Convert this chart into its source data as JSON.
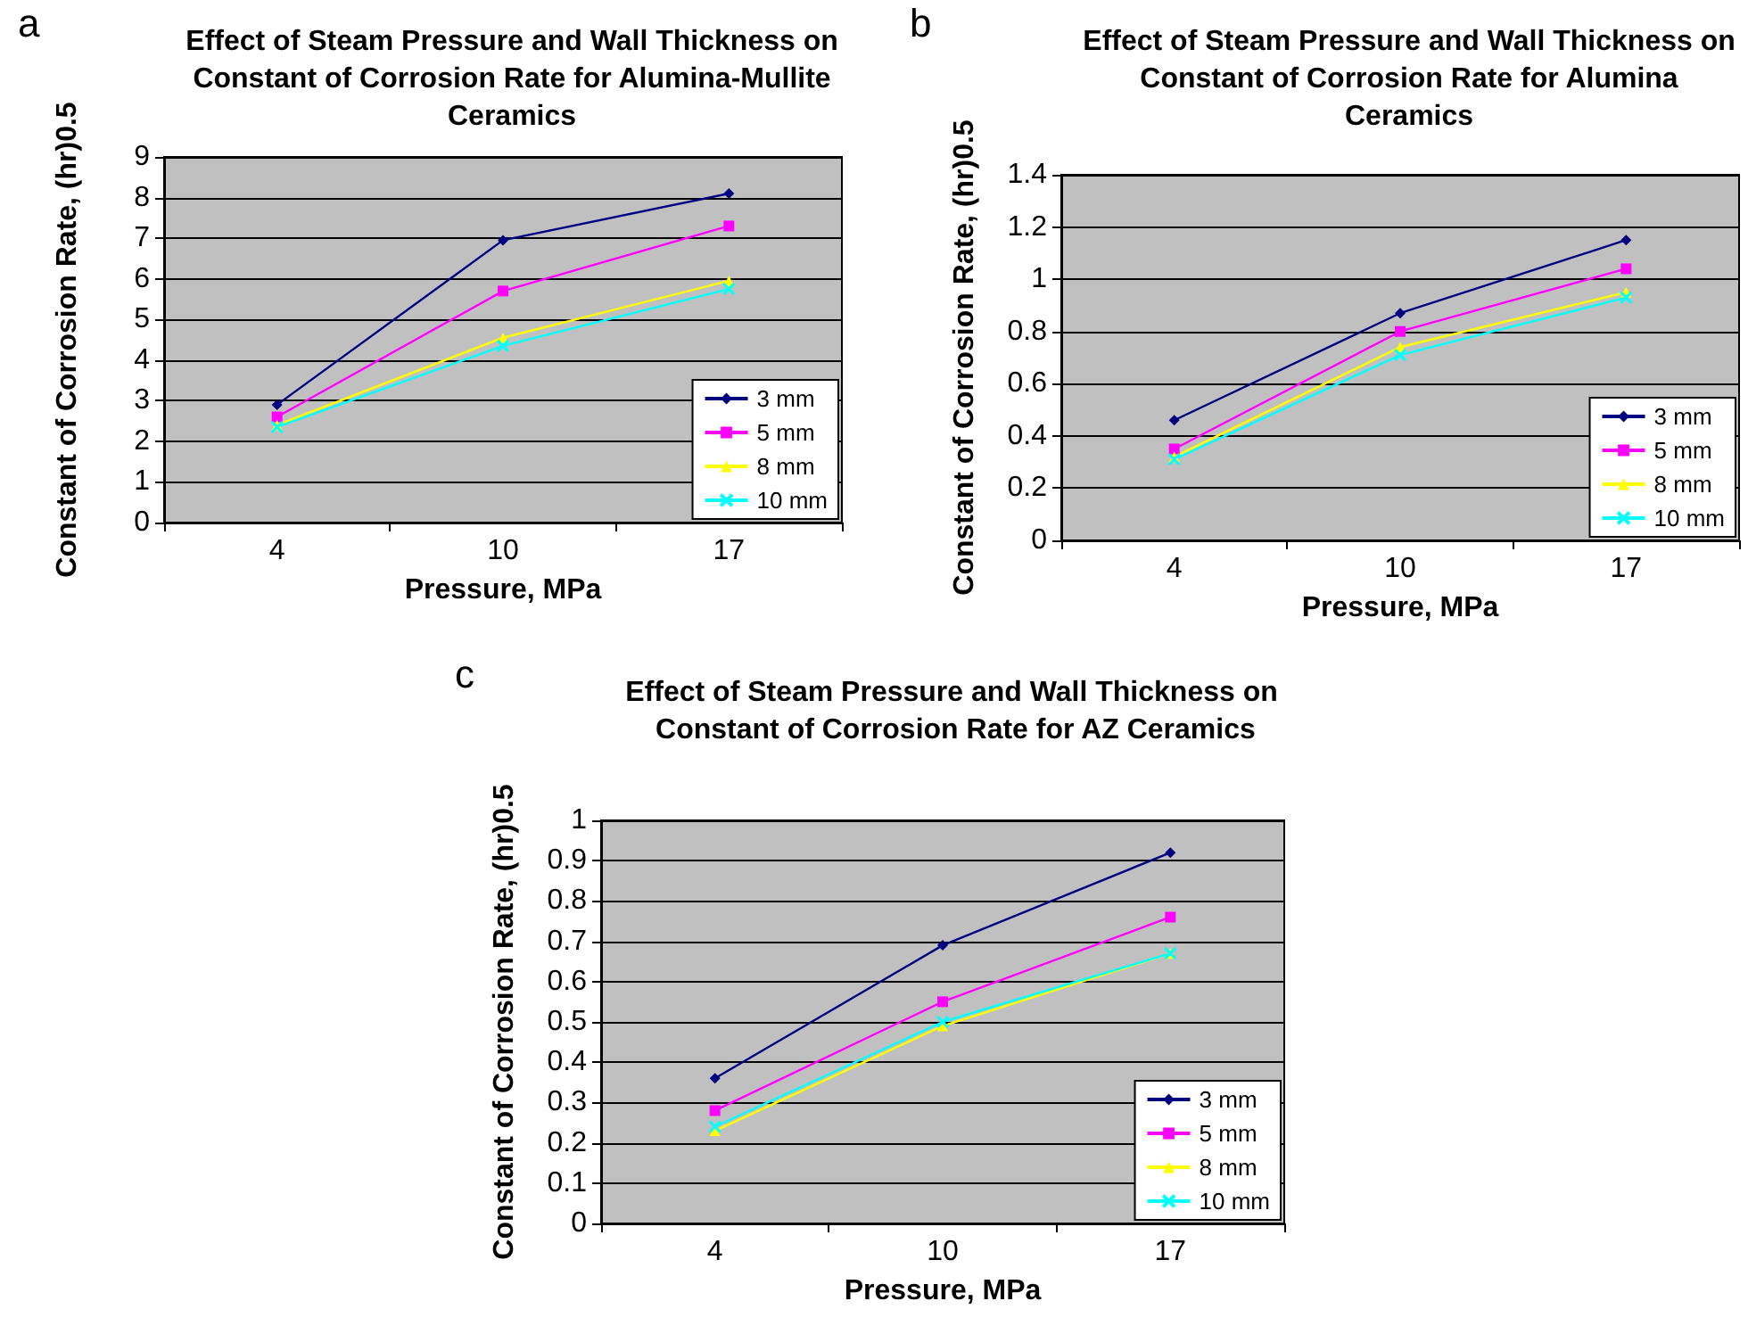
{
  "chart_data": [
    {
      "type": "line",
      "title": "Effect of Steam Pressure and Wall Thickness on Constant of Corrosion Rate for Alumina-Mullite Ceramics",
      "xlabel": "Pressure, MPa",
      "ylabel": "Constant of Corrosion Rate, (hr)0.5",
      "annotations": [
        "a"
      ],
      "categories": [
        "4",
        "10",
        "17"
      ],
      "ylim": [
        0,
        9
      ],
      "yticks": [
        0,
        1,
        2,
        3,
        4,
        5,
        6,
        7,
        8,
        9
      ],
      "grid": "y",
      "legend": "bottom right",
      "series": [
        {
          "name": "3 mm",
          "color": "#000080",
          "marker": "diamond",
          "values": [
            2.9,
            6.95,
            8.1
          ]
        },
        {
          "name": "5 mm",
          "color": "#ff00ff",
          "marker": "square",
          "values": [
            2.6,
            5.7,
            7.3
          ]
        },
        {
          "name": "8 mm",
          "color": "#ffff00",
          "marker": "triangle",
          "values": [
            2.4,
            4.55,
            5.95
          ]
        },
        {
          "name": "10 mm",
          "color": "#00ffff",
          "marker": "cross",
          "values": [
            2.35,
            4.35,
            5.75
          ]
        }
      ]
    },
    {
      "type": "line",
      "title": "Effect of Steam Pressure and Wall Thickness on Constant of Corrosion Rate for Alumina Ceramics",
      "xlabel": "Pressure, MPa",
      "ylabel": "Constant of Corrosion Rate, (hr)0.5",
      "annotations": [
        "b"
      ],
      "categories": [
        "4",
        "10",
        "17"
      ],
      "ylim": [
        0,
        1.4
      ],
      "yticks": [
        0,
        0.2,
        0.4,
        0.6,
        0.8,
        1,
        1.2,
        1.4
      ],
      "grid": "y",
      "legend": "bottom right",
      "series": [
        {
          "name": "3 mm",
          "color": "#000080",
          "marker": "diamond",
          "values": [
            0.46,
            0.87,
            1.15
          ]
        },
        {
          "name": "5 mm",
          "color": "#ff00ff",
          "marker": "square",
          "values": [
            0.35,
            0.8,
            1.04
          ]
        },
        {
          "name": "8 mm",
          "color": "#ffff00",
          "marker": "triangle",
          "values": [
            0.32,
            0.74,
            0.95
          ]
        },
        {
          "name": "10 mm",
          "color": "#00ffff",
          "marker": "cross",
          "values": [
            0.31,
            0.71,
            0.93
          ]
        }
      ]
    },
    {
      "type": "line",
      "title": "Effect of Steam Pressure and Wall Thickness on Constant of Corrosion Rate for AZ Ceramics",
      "xlabel": "Pressure, MPa",
      "ylabel": "Constant of Corrosion Rate, (hr)0.5",
      "annotations": [
        "c"
      ],
      "categories": [
        "4",
        "10",
        "17"
      ],
      "ylim": [
        0,
        1
      ],
      "yticks": [
        0,
        0.1,
        0.2,
        0.3,
        0.4,
        0.5,
        0.6,
        0.7,
        0.8,
        0.9,
        1
      ],
      "grid": "y",
      "legend": "bottom right",
      "series": [
        {
          "name": "3 mm",
          "color": "#000080",
          "marker": "diamond",
          "values": [
            0.36,
            0.69,
            0.92
          ]
        },
        {
          "name": "5 mm",
          "color": "#ff00ff",
          "marker": "square",
          "values": [
            0.28,
            0.55,
            0.76
          ]
        },
        {
          "name": "8 mm",
          "color": "#ffff00",
          "marker": "triangle",
          "values": [
            0.23,
            0.49,
            0.67
          ]
        },
        {
          "name": "10 mm",
          "color": "#00ffff",
          "marker": "cross",
          "values": [
            0.24,
            0.5,
            0.67
          ]
        }
      ]
    }
  ]
}
